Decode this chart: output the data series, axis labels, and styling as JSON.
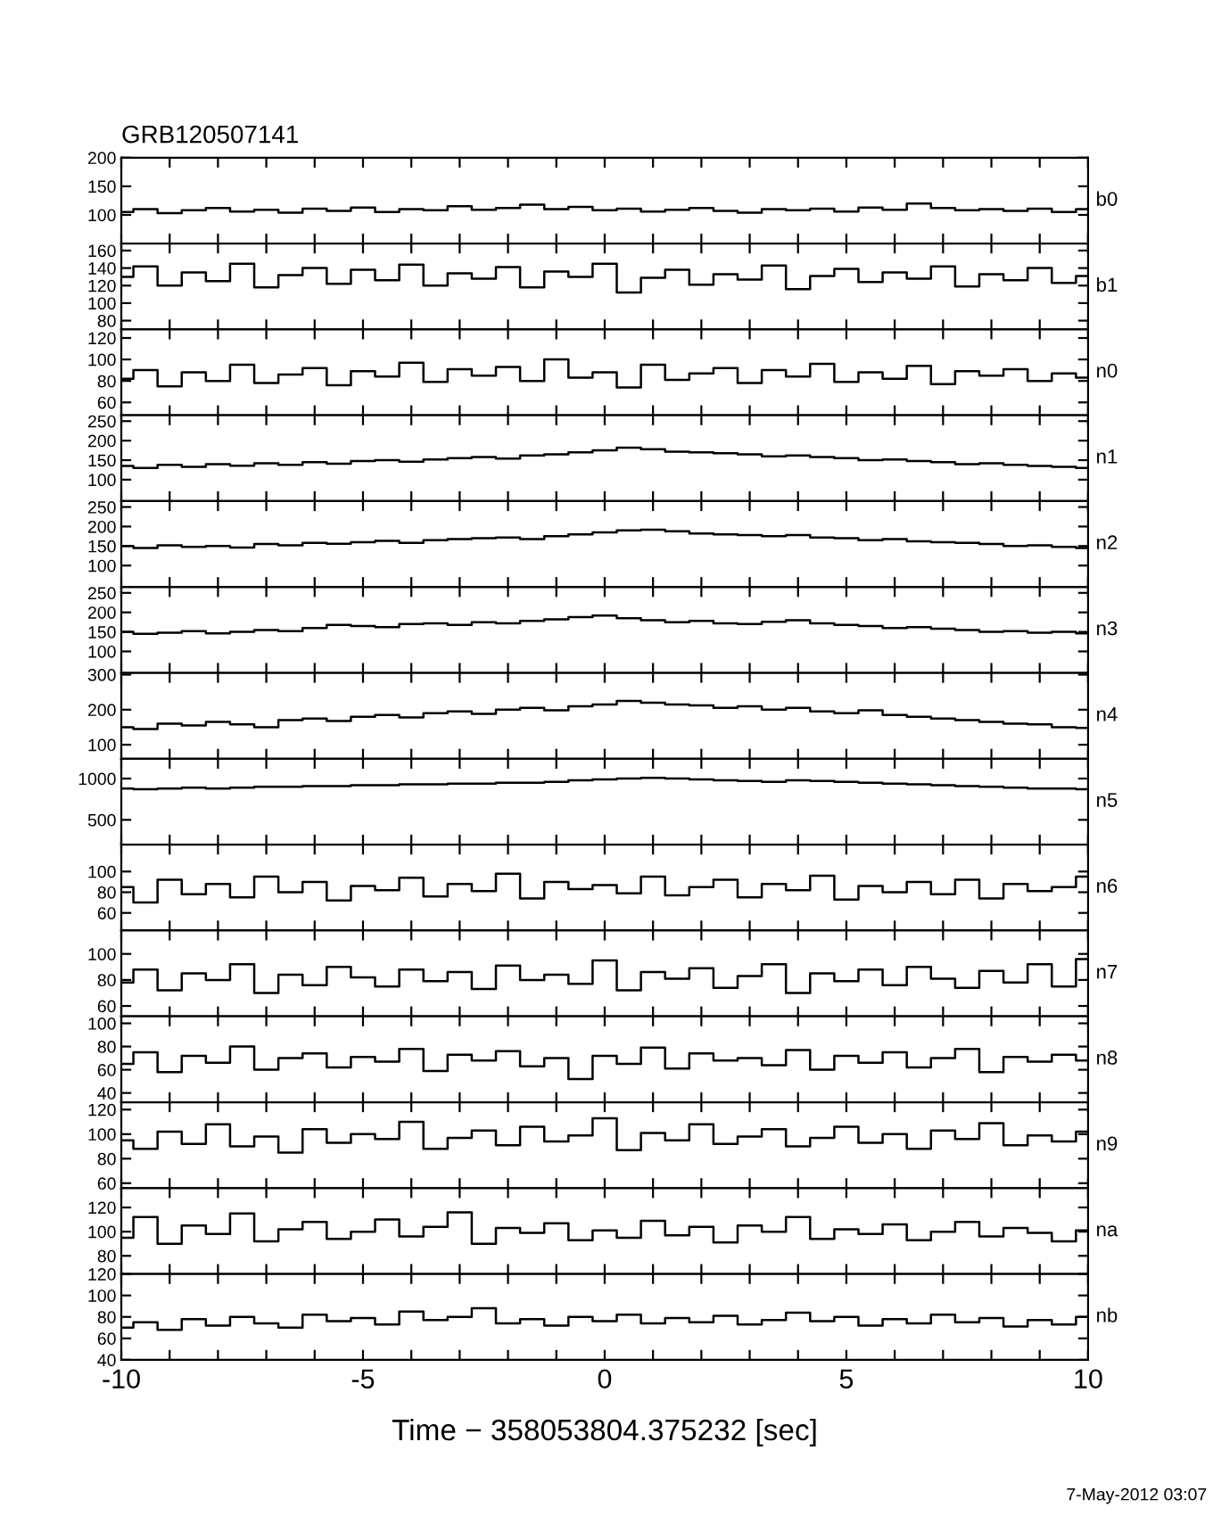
{
  "chart_data": [
    {
      "type": "step",
      "title": "GRB120507141",
      "x": [
        -10,
        -9.5,
        -9,
        -8.5,
        -8,
        -7.5,
        -7,
        -6.5,
        -6,
        -5.5,
        -5,
        -4.5,
        -4,
        -3.5,
        -3,
        -2.5,
        -2,
        -1.5,
        -1,
        -0.5,
        0,
        0.5,
        1,
        1.5,
        2,
        2.5,
        3,
        3.5,
        4,
        4.5,
        5,
        5.5,
        6,
        6.5,
        7,
        7.5,
        8,
        8.5,
        9,
        9.5,
        10
      ],
      "xlim": [
        -10,
        10
      ],
      "xticks": [
        -10,
        {
          "value": -9,
          "label": null
        },
        {
          "value": -8,
          "label": null
        },
        {
          "value": -7,
          "label": null
        },
        {
          "value": -6,
          "label": null
        },
        -5,
        {
          "value": -4,
          "label": null
        },
        {
          "value": -3,
          "label": null
        },
        {
          "value": -2,
          "label": null
        },
        {
          "value": -1,
          "label": null
        },
        0,
        {
          "value": 1,
          "label": null
        },
        {
          "value": 2,
          "label": null
        },
        {
          "value": 3,
          "label": null
        },
        {
          "value": 4,
          "label": null
        },
        5,
        {
          "value": 6,
          "label": null
        },
        {
          "value": 7,
          "label": null
        },
        {
          "value": 8,
          "label": null
        },
        {
          "value": 9,
          "label": null
        },
        10
      ],
      "ylim": [
        50,
        200
      ],
      "yticks": [
        100,
        150,
        200
      ],
      "tick_labels": "y",
      "series": [
        {
          "name": "b0",
          "color": "#000000",
          "values": [
            105,
            110,
            103,
            108,
            112,
            106,
            109,
            104,
            111,
            107,
            113,
            105,
            110,
            108,
            115,
            109,
            112,
            118,
            110,
            114,
            108,
            111,
            106,
            109,
            112,
            107,
            104,
            110,
            108,
            111,
            106,
            113,
            109,
            120,
            112,
            108,
            110,
            107,
            111,
            105,
            110
          ]
        }
      ]
    },
    {
      "type": "step",
      "ylim": [
        70,
        168
      ],
      "yticks": [
        80,
        100,
        120,
        140,
        160
      ],
      "tick_labels": "y",
      "series": [
        {
          "name": "b1",
          "color": "#000000",
          "values": [
            130,
            142,
            120,
            135,
            125,
            145,
            118,
            132,
            140,
            122,
            138,
            126,
            144,
            120,
            134,
            128,
            141,
            118,
            136,
            130,
            145,
            112,
            129,
            138,
            121,
            133,
            127,
            143,
            116,
            131,
            139,
            124,
            135,
            128,
            142,
            119,
            133,
            126,
            140,
            123,
            131
          ]
        }
      ]
    },
    {
      "type": "step",
      "ylim": [
        48,
        128
      ],
      "yticks": [
        60,
        80,
        100,
        120
      ],
      "tick_labels": "y",
      "series": [
        {
          "name": "n0",
          "color": "#000000",
          "values": [
            82,
            90,
            75,
            88,
            80,
            95,
            78,
            86,
            92,
            76,
            89,
            84,
            97,
            79,
            91,
            85,
            93,
            80,
            100,
            83,
            88,
            74,
            95,
            81,
            87,
            92,
            78,
            90,
            84,
            96,
            79,
            88,
            82,
            94,
            77,
            89,
            85,
            91,
            80,
            87,
            83
          ]
        }
      ]
    },
    {
      "type": "step",
      "ylim": [
        45,
        265
      ],
      "yticks": [
        100,
        150,
        200,
        250
      ],
      "tick_labels": "y",
      "series": [
        {
          "name": "n1",
          "color": "#000000",
          "values": [
            135,
            130,
            138,
            133,
            140,
            136,
            142,
            138,
            145,
            141,
            148,
            150,
            146,
            152,
            155,
            158,
            154,
            162,
            165,
            170,
            175,
            182,
            178,
            172,
            170,
            168,
            165,
            160,
            162,
            158,
            155,
            150,
            152,
            148,
            145,
            140,
            142,
            138,
            135,
            133,
            130
          ]
        }
      ]
    },
    {
      "type": "step",
      "ylim": [
        45,
        265
      ],
      "yticks": [
        100,
        150,
        200,
        250
      ],
      "tick_labels": "y",
      "series": [
        {
          "name": "n2",
          "color": "#000000",
          "values": [
            150,
            145,
            152,
            148,
            150,
            146,
            155,
            152,
            158,
            156,
            160,
            163,
            158,
            165,
            168,
            170,
            172,
            168,
            175,
            180,
            185,
            190,
            192,
            188,
            182,
            180,
            178,
            175,
            178,
            172,
            170,
            165,
            168,
            162,
            160,
            158,
            155,
            150,
            152,
            148,
            145
          ]
        }
      ]
    },
    {
      "type": "step",
      "ylim": [
        45,
        265
      ],
      "yticks": [
        100,
        150,
        200,
        250
      ],
      "tick_labels": "y",
      "series": [
        {
          "name": "n3",
          "color": "#000000",
          "values": [
            150,
            145,
            148,
            152,
            146,
            150,
            155,
            152,
            160,
            168,
            165,
            162,
            170,
            172,
            168,
            175,
            172,
            178,
            182,
            188,
            192,
            185,
            180,
            175,
            178,
            172,
            170,
            176,
            180,
            172,
            168,
            165,
            160,
            162,
            158,
            155,
            150,
            152,
            148,
            150,
            146
          ]
        }
      ]
    },
    {
      "type": "step",
      "ylim": [
        60,
        305
      ],
      "yticks": [
        100,
        200,
        300
      ],
      "tick_labels": "y",
      "series": [
        {
          "name": "n4",
          "color": "#000000",
          "values": [
            150,
            145,
            160,
            155,
            165,
            158,
            150,
            170,
            175,
            168,
            180,
            185,
            178,
            190,
            195,
            188,
            200,
            205,
            198,
            210,
            215,
            225,
            220,
            215,
            212,
            205,
            210,
            200,
            205,
            195,
            190,
            198,
            185,
            180,
            175,
            170,
            165,
            160,
            158,
            150,
            148
          ]
        }
      ]
    },
    {
      "type": "step",
      "ylim": [
        200,
        1240
      ],
      "yticks": [
        500,
        1000
      ],
      "tick_labels": "y",
      "series": [
        {
          "name": "n5",
          "color": "#000000",
          "values": [
            880,
            870,
            880,
            890,
            880,
            890,
            900,
            900,
            910,
            910,
            920,
            920,
            930,
            930,
            940,
            940,
            950,
            950,
            960,
            980,
            990,
            1000,
            1010,
            1000,
            990,
            980,
            970,
            960,
            980,
            970,
            960,
            950,
            940,
            930,
            920,
            910,
            900,
            890,
            880,
            880,
            870
          ]
        }
      ]
    },
    {
      "type": "step",
      "ylim": [
        43,
        126
      ],
      "yticks": [
        60,
        80,
        100
      ],
      "tick_labels": "y",
      "series": [
        {
          "name": "n6",
          "color": "#000000",
          "values": [
            85,
            70,
            92,
            78,
            88,
            75,
            95,
            80,
            90,
            72,
            86,
            82,
            94,
            76,
            88,
            81,
            98,
            74,
            90,
            83,
            87,
            79,
            95,
            77,
            85,
            92,
            75,
            88,
            82,
            96,
            73,
            86,
            80,
            90,
            78,
            92,
            74,
            88,
            81,
            85,
            95
          ]
        }
      ]
    },
    {
      "type": "step",
      "ylim": [
        52,
        118
      ],
      "yticks": [
        60,
        80,
        100
      ],
      "tick_labels": "y",
      "series": [
        {
          "name": "n7",
          "color": "#000000",
          "values": [
            78,
            88,
            72,
            85,
            80,
            92,
            70,
            84,
            76,
            90,
            82,
            75,
            88,
            79,
            86,
            73,
            91,
            80,
            84,
            77,
            95,
            72,
            86,
            81,
            89,
            74,
            83,
            92,
            70,
            85,
            79,
            88,
            76,
            90,
            81,
            74,
            87,
            78,
            92,
            75,
            96
          ]
        }
      ]
    },
    {
      "type": "step",
      "ylim": [
        32,
        106
      ],
      "yticks": [
        40,
        60,
        80,
        100
      ],
      "tick_labels": "y",
      "series": [
        {
          "name": "n8",
          "color": "#000000",
          "values": [
            65,
            75,
            58,
            72,
            66,
            80,
            60,
            70,
            74,
            62,
            71,
            67,
            78,
            59,
            73,
            68,
            76,
            63,
            70,
            52,
            72,
            65,
            79,
            61,
            74,
            68,
            70,
            64,
            77,
            60,
            72,
            66,
            75,
            62,
            70,
            78,
            58,
            71,
            67,
            73,
            68
          ]
        }
      ]
    },
    {
      "type": "step",
      "ylim": [
        56,
        126
      ],
      "yticks": [
        60,
        80,
        100,
        120
      ],
      "tick_labels": "y",
      "series": [
        {
          "name": "n9",
          "color": "#000000",
          "values": [
            95,
            88,
            102,
            92,
            108,
            90,
            98,
            85,
            104,
            93,
            100,
            96,
            110,
            88,
            97,
            103,
            91,
            106,
            94,
            99,
            113,
            87,
            101,
            95,
            108,
            92,
            98,
            104,
            90,
            97,
            106,
            93,
            100,
            88,
            103,
            96,
            109,
            91,
            99,
            94,
            102
          ]
        }
      ]
    },
    {
      "type": "step",
      "ylim": [
        65,
        136
      ],
      "yticks": [
        80,
        100,
        120
      ],
      "tick_labels": "y",
      "series": [
        {
          "name": "na",
          "color": "#000000",
          "values": [
            95,
            112,
            90,
            105,
            98,
            115,
            92,
            102,
            108,
            94,
            100,
            110,
            96,
            104,
            116,
            90,
            103,
            99,
            107,
            93,
            101,
            95,
            109,
            97,
            104,
            91,
            105,
            100,
            112,
            94,
            102,
            98,
            106,
            93,
            100,
            108,
            96,
            103,
            99,
            92,
            101
          ]
        }
      ]
    },
    {
      "type": "step",
      "x": [
        -10,
        -9.5,
        -9,
        -8.5,
        -8,
        -7.5,
        -7,
        -6.5,
        -6,
        -5.5,
        -5,
        -4.5,
        -4,
        -3.5,
        -3,
        -2.5,
        -2,
        -1.5,
        -1,
        -0.5,
        0,
        0.5,
        1,
        1.5,
        2,
        2.5,
        3,
        3.5,
        4,
        4.5,
        5,
        5.5,
        6,
        6.5,
        7,
        7.5,
        8,
        8.5,
        9,
        9.5,
        10
      ],
      "xlim": [
        -10,
        10
      ],
      "xticks": [
        -10,
        {
          "value": -9,
          "label": null
        },
        {
          "value": -8,
          "label": null
        },
        {
          "value": -7,
          "label": null
        },
        {
          "value": -6,
          "label": null
        },
        -5,
        {
          "value": -4,
          "label": null
        },
        {
          "value": -3,
          "label": null
        },
        {
          "value": -2,
          "label": null
        },
        {
          "value": -1,
          "label": null
        },
        0,
        {
          "value": 1,
          "label": null
        },
        {
          "value": 2,
          "label": null
        },
        {
          "value": 3,
          "label": null
        },
        {
          "value": 4,
          "label": null
        },
        5,
        {
          "value": 6,
          "label": null
        },
        {
          "value": 7,
          "label": null
        },
        {
          "value": 8,
          "label": null
        },
        {
          "value": 9,
          "label": null
        },
        10
      ],
      "ylim": [
        40,
        120
      ],
      "yticks": [
        40,
        60,
        80,
        100,
        120
      ],
      "xlabel": "Time − 358053804.375232 [sec]",
      "annotations": [
        "7-May-2012 03:07"
      ],
      "series": [
        {
          "name": "nb",
          "color": "#000000",
          "values": [
            70,
            75,
            68,
            78,
            72,
            80,
            74,
            70,
            82,
            76,
            79,
            73,
            85,
            77,
            80,
            88,
            74,
            78,
            72,
            80,
            76,
            82,
            74,
            79,
            75,
            81,
            73,
            77,
            84,
            76,
            80,
            72,
            78,
            74,
            82,
            75,
            79,
            71,
            77,
            73,
            80
          ]
        }
      ]
    }
  ]
}
